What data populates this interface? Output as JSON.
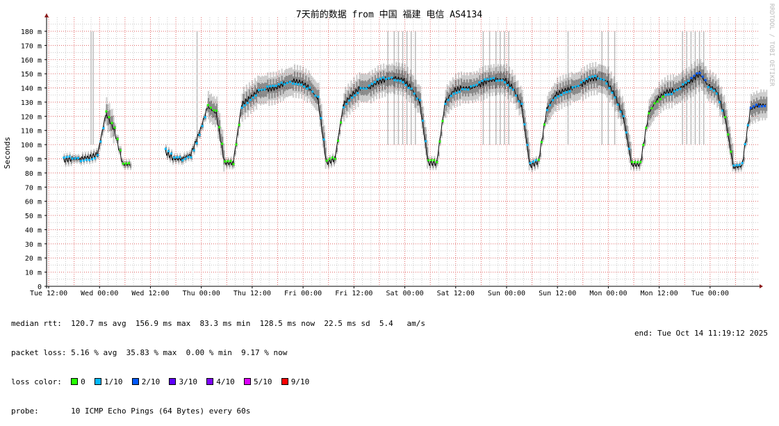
{
  "chart_data": {
    "type": "line",
    "title": "7天前的数据 from 中国 福建 电信 AS4134",
    "ylabel": "Seconds",
    "watermark": "RRDTOOL / TOBI OETIKER",
    "ylim": [
      0,
      190
    ],
    "yticks": [
      0,
      10,
      20,
      30,
      40,
      50,
      60,
      70,
      80,
      90,
      100,
      110,
      120,
      130,
      140,
      150,
      160,
      170,
      180
    ],
    "ytick_suffix": " m",
    "grid": true,
    "x_tick_labels": [
      "Tue 12:00",
      "Wed 00:00",
      "Wed 12:00",
      "Thu 00:00",
      "Thu 12:00",
      "Fri 00:00",
      "Fri 12:00",
      "Sat 00:00",
      "Sat 12:00",
      "Sun 00:00",
      "Sun 12:00",
      "Mon 00:00",
      "Mon 12:00",
      "Tue 00:00"
    ],
    "x_tick_hours": [
      0.5,
      12.5,
      24.5,
      36.5,
      48.5,
      60.5,
      72.5,
      84.5,
      96.5,
      108.5,
      120.5,
      132.5,
      144.5,
      156.5
    ],
    "x_range_hours": [
      0,
      168
    ],
    "sample_interval_hours": 2,
    "median_ms": [
      null,
      null,
      89,
      90,
      90,
      91,
      93,
      122,
      110,
      86,
      null,
      null,
      null,
      null,
      95,
      90,
      90,
      93,
      108,
      127,
      122,
      87,
      87,
      128,
      133,
      138,
      139,
      140,
      143,
      145,
      144,
      140,
      132,
      87,
      90,
      128,
      135,
      140,
      140,
      144,
      146,
      147,
      146,
      140,
      130,
      87,
      87,
      130,
      138,
      140,
      140,
      142,
      145,
      146,
      146,
      140,
      128,
      85,
      88,
      125,
      135,
      138,
      140,
      142,
      146,
      147,
      145,
      135,
      120,
      86,
      86,
      122,
      132,
      137,
      138,
      141,
      145,
      150,
      142,
      138,
      120,
      84,
      85,
      125,
      128
    ],
    "loss_tenths": [
      0,
      0,
      1,
      1,
      1,
      1,
      1,
      0,
      0,
      0,
      0,
      0,
      0,
      0,
      1,
      1,
      1,
      1,
      1,
      0,
      0,
      0,
      0,
      1,
      1,
      1,
      1,
      1,
      1,
      1,
      1,
      1,
      1,
      0,
      0,
      1,
      1,
      1,
      1,
      1,
      1,
      1,
      1,
      1,
      1,
      0,
      0,
      1,
      1,
      1,
      1,
      1,
      1,
      1,
      1,
      1,
      1,
      1,
      0,
      1,
      1,
      1,
      1,
      1,
      1,
      1,
      1,
      1,
      1,
      0,
      0,
      0,
      0,
      1,
      1,
      1,
      2,
      2,
      1,
      1,
      0,
      1,
      1,
      2,
      2
    ],
    "outlier_hours": [
      10.5,
      11,
      35.5,
      80.5,
      82,
      83,
      84,
      85,
      86,
      87,
      103,
      104.5,
      106,
      107,
      108,
      109,
      123,
      131,
      132.5,
      134,
      150,
      151,
      152,
      153,
      154,
      155
    ],
    "colors": {
      "median_default": "#000000",
      "smoke": "#000000",
      "grid_major": "#e06060",
      "grid_minor": "#c8c8c8",
      "axis": "#000000",
      "arrow": "#8b1a1a",
      "watermark": "#bbbbbb"
    }
  },
  "legend": {
    "median_label": "median rtt:",
    "median_values": "120.7 ms avg  156.9 ms max  83.3 ms min  128.5 ms now  22.5 ms sd  5.4   am/s",
    "loss_label": "packet loss:",
    "loss_values": "5.16 % avg  35.83 % max  0.00 % min  9.17 % now",
    "loss_color_label": "loss color:",
    "loss_colors": [
      {
        "label": "0",
        "color": "#26ff00"
      },
      {
        "label": "1/10",
        "color": "#00b8ff"
      },
      {
        "label": "2/10",
        "color": "#0059ff"
      },
      {
        "label": "3/10",
        "color": "#5e00ff"
      },
      {
        "label": "4/10",
        "color": "#7e00ff"
      },
      {
        "label": "5/10",
        "color": "#dd00ff"
      },
      {
        "label": "9/10",
        "color": "#ff0000"
      }
    ],
    "probe_label": "probe:",
    "probe_value": "10 ICMP Echo Pings (64 Bytes) every 60s",
    "end": "end: Tue Oct 14 11:19:12 2025"
  }
}
